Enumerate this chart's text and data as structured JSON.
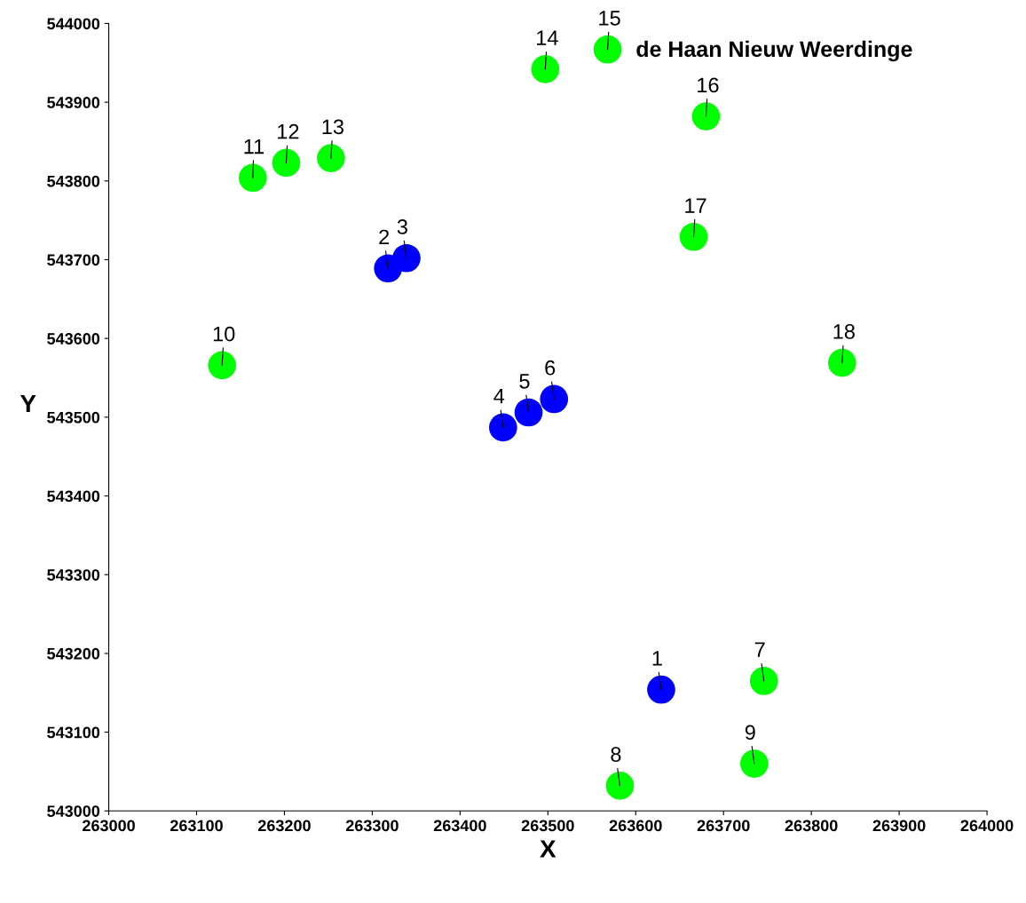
{
  "chart_data": {
    "type": "scatter",
    "xlabel": "X",
    "ylabel": "Y",
    "xlim": [
      263000,
      264000
    ],
    "ylim": [
      543000,
      544000
    ],
    "xticks": [
      263000,
      263100,
      263200,
      263300,
      263400,
      263500,
      263600,
      263700,
      263800,
      263900,
      264000
    ],
    "yticks": [
      543000,
      543100,
      543200,
      543300,
      543400,
      543500,
      543600,
      543700,
      543800,
      543900,
      544000
    ],
    "grid": false,
    "legend": false,
    "marker": "circle",
    "series": [
      {
        "color": "#0000ff",
        "x": [
          263629,
          263318,
          263339,
          263449,
          263478,
          263507
        ],
        "values": [
          543154,
          543689,
          543702,
          543487,
          543506,
          543523
        ]
      },
      {
        "color": "#00ff00",
        "x": [
          263746,
          263582,
          263735,
          263129,
          263164,
          263202,
          263253,
          263497,
          263568,
          263680,
          263666,
          263835
        ],
        "values": [
          543165,
          543032,
          543060,
          543566,
          543804,
          543823,
          543829,
          543942,
          543967,
          543882,
          543729,
          543569
        ]
      }
    ],
    "annotations": [
      {
        "text": "1",
        "x": 263629,
        "y": 543154
      },
      {
        "text": "2",
        "x": 263318,
        "y": 543689
      },
      {
        "text": "3",
        "x": 263339,
        "y": 543702
      },
      {
        "text": "4",
        "x": 263449,
        "y": 543487
      },
      {
        "text": "5",
        "x": 263478,
        "y": 543506
      },
      {
        "text": "6",
        "x": 263507,
        "y": 543523
      },
      {
        "text": "7",
        "x": 263746,
        "y": 543165
      },
      {
        "text": "8",
        "x": 263582,
        "y": 543032
      },
      {
        "text": "9",
        "x": 263735,
        "y": 543060
      },
      {
        "text": "10",
        "x": 263129,
        "y": 543566
      },
      {
        "text": "11",
        "x": 263164,
        "y": 543804
      },
      {
        "text": "12",
        "x": 263202,
        "y": 543823
      },
      {
        "text": "13",
        "x": 263253,
        "y": 543829
      },
      {
        "text": "14",
        "x": 263497,
        "y": 543942
      },
      {
        "text": "15",
        "x": 263568,
        "y": 543967
      },
      {
        "text": "16",
        "x": 263680,
        "y": 543882
      },
      {
        "text": "17",
        "x": 263666,
        "y": 543729
      },
      {
        "text": "18",
        "x": 263835,
        "y": 543569
      },
      "de Haan Nieuw Weerdinge"
    ]
  }
}
